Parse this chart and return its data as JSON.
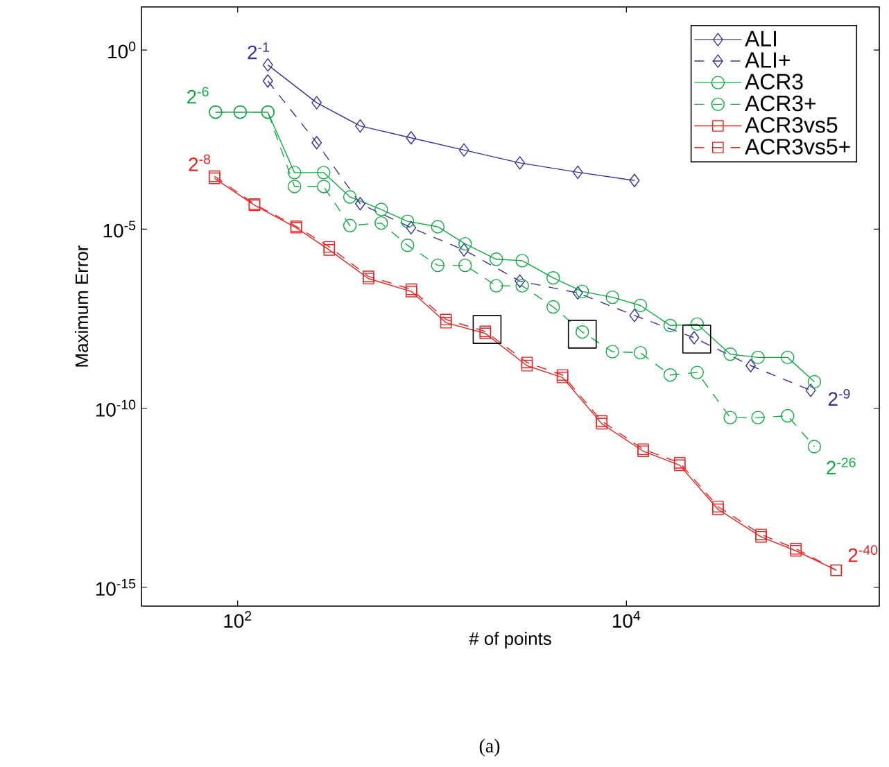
{
  "chart_data": {
    "type": "line",
    "xlabel": "# of points",
    "ylabel": "Maximum Error",
    "log": "xy",
    "xlim": [
      32,
      200000
    ],
    "ylim": [
      3e-16,
      16
    ],
    "xticks": [
      {
        "value": 100,
        "label": "10$^{2}$"
      },
      {
        "value": 10000,
        "label": "10$^{4}$"
      }
    ],
    "yticks": [
      {
        "value": 1,
        "label": "10$^{0}$"
      },
      {
        "value": 1e-05,
        "label": "10$^{-5}$"
      },
      {
        "value": 1e-10,
        "label": "10$^{-10}$"
      },
      {
        "value": 1e-15,
        "label": "10$^{-15}$"
      }
    ],
    "legend": "top right",
    "series": [
      {
        "name": "ALI",
        "color": "#333399",
        "marker": "diamond",
        "line_style": "solid",
        "x": [
          143,
          255,
          427,
          780,
          1460,
          2830,
          5620,
          11000
        ],
        "values": [
          0.385,
          0.0339,
          0.00759,
          0.00355,
          0.00162,
          0.000708,
          0.000389,
          0.000229
        ]
      },
      {
        "name": "ALI+",
        "color": "#333399",
        "marker": "diamond",
        "line_style": "dashed",
        "x": [
          143,
          255,
          427,
          780,
          1460,
          2830,
          5620,
          11000,
          22300,
          43600,
          88700
        ],
        "values": [
          0.137,
          0.0026,
          5.13e-05,
          1.1e-05,
          2.63e-06,
          3.55e-07,
          1.66e-07,
          3.89e-08,
          9.33e-09,
          1.55e-09,
          3.16e-10
        ]
      },
      {
        "name": "ACR3",
        "color": "#11aa44",
        "marker": "circle",
        "line_style": "solid",
        "x": [
          77,
          103,
          143,
          196,
          277,
          378,
          548,
          748,
          1070,
          1480,
          2140,
          2910,
          4200,
          5930,
          8470,
          11800,
          16800,
          23100,
          34200,
          47500,
          67500,
          92700
        ],
        "values": [
          0.0185,
          0.0185,
          0.0185,
          0.00038,
          0.00038,
          7.94e-05,
          3.55e-05,
          1.66e-05,
          1.17e-05,
          3.89e-06,
          1.45e-06,
          1.32e-06,
          4.37e-07,
          1.82e-07,
          1.26e-07,
          7.41e-08,
          2.04e-08,
          2.24e-08,
          3.24e-09,
          2.63e-09,
          2.63e-09,
          5.5e-10
        ]
      },
      {
        "name": "ACR3+",
        "color": "#11aa44",
        "marker": "circle",
        "line_style": "dashed",
        "x": [
          77,
          103,
          143,
          196,
          277,
          378,
          548,
          748,
          1070,
          1480,
          2140,
          2910,
          4200,
          5930,
          8470,
          11800,
          16800,
          23100,
          34200,
          47500,
          67500,
          92700
        ],
        "values": [
          0.0185,
          0.0185,
          0.0185,
          0.000155,
          0.000155,
          1.26e-05,
          1.48e-05,
          3.55e-06,
          9.77e-07,
          9.77e-07,
          2.63e-07,
          2.63e-07,
          6.76e-08,
          1.35e-08,
          3.8e-09,
          3.55e-09,
          8.51e-10,
          1e-09,
          5.5e-11,
          5.5e-11,
          6.17e-11,
          8.51e-12
        ]
      },
      {
        "name": "ACR3vs5",
        "color": "#ee2222",
        "marker": "square",
        "line_style": "solid",
        "x": [
          76,
          122,
          200,
          296,
          471,
          783,
          1180,
          1880,
          3080,
          4690,
          7460,
          12200,
          18800,
          29600,
          49300,
          74500,
          120000
        ],
        "values": [
          0.000263,
          4.68e-05,
          1.1e-05,
          2.63e-06,
          4.17e-07,
          1.82e-07,
          2.45e-08,
          1.23e-08,
          1.55e-09,
          7.24e-10,
          3.72e-11,
          6.31e-12,
          2.57e-12,
          1.51e-13,
          2.57e-14,
          1.05e-14,
          3.02e-15
        ]
      },
      {
        "name": "ACR3vs5+",
        "color": "#ee2222",
        "marker": "square",
        "line_style": "dashed",
        "x": [
          76,
          122,
          200,
          296,
          471,
          783,
          1180,
          1880,
          3080,
          4690,
          7460,
          12200,
          18800,
          29600,
          49300,
          74500,
          120000
        ],
        "values": [
          0.0003,
          5e-05,
          1.2e-05,
          3.2e-06,
          4.8e-07,
          2.1e-07,
          3e-08,
          1.4e-08,
          1.9e-09,
          8.5e-10,
          4.4e-11,
          7.2e-12,
          3e-12,
          1.8e-13,
          3e-14,
          1.2e-14,
          3.02e-15
        ]
      },
      {
        "type": "scatter",
        "color": "#000000",
        "marker": "square",
        "x": [
          1920,
          5930,
          23000
        ],
        "values": [
          1.58e-08,
          1.17e-08,
          8.5e-09
        ]
      }
    ],
    "annotations": [
      "2$^{-1}$",
      "2$^{-6}$",
      "2$^{-8}$",
      "2$^{-9}$",
      "2$^{-26}$",
      "2$^{-40}$",
      "(a)"
    ]
  }
}
